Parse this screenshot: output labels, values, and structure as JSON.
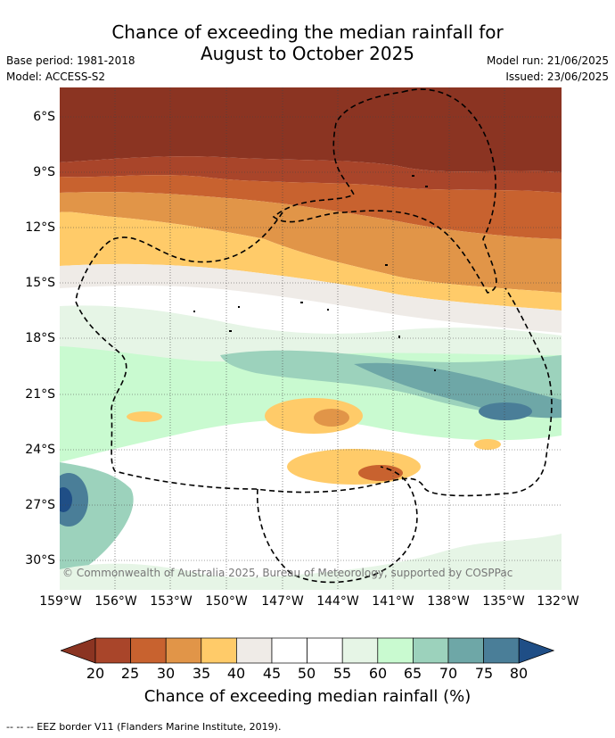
{
  "header": {
    "title_line1": "Chance of exceeding the median rainfall for",
    "title_line2": "August to October 2025",
    "base_period": "Base period: 1981-2018",
    "model": "Model: ACCESS-S2",
    "model_run": "Model run: 21/06/2025",
    "issued": "Issued: 23/06/2025"
  },
  "map": {
    "credit": "© Commonwealth of Australia 2025, Bureau of Meteorology, supported by COSPPac",
    "lat_labels": [
      "6°S",
      "9°S",
      "12°S",
      "15°S",
      "18°S",
      "21°S",
      "24°S",
      "27°S",
      "30°S"
    ],
    "lon_labels": [
      "159°W",
      "156°W",
      "153°W",
      "150°W",
      "147°W",
      "144°W",
      "141°W",
      "138°W",
      "135°W",
      "132°W"
    ]
  },
  "colorbar": {
    "ticks": [
      "20",
      "25",
      "30",
      "35",
      "40",
      "45",
      "50",
      "55",
      "60",
      "65",
      "70",
      "75",
      "80"
    ],
    "label": "Chance of exceeding median rainfall (%)",
    "colors": [
      "#a9452a",
      "#c8622f",
      "#e19548",
      "#ffcb69",
      "#efebe7",
      "#ffffff",
      "#ffffff",
      "#e6f5e6",
      "#c9fad0",
      "#9cd2bc",
      "#6ea7a7",
      "#4a7e98"
    ],
    "low_color": "#8b3422",
    "high_color": "#1f4e86"
  },
  "footnote": "--  --  -- EEZ border V11 (Flanders Marine Institute, 2019)."
}
